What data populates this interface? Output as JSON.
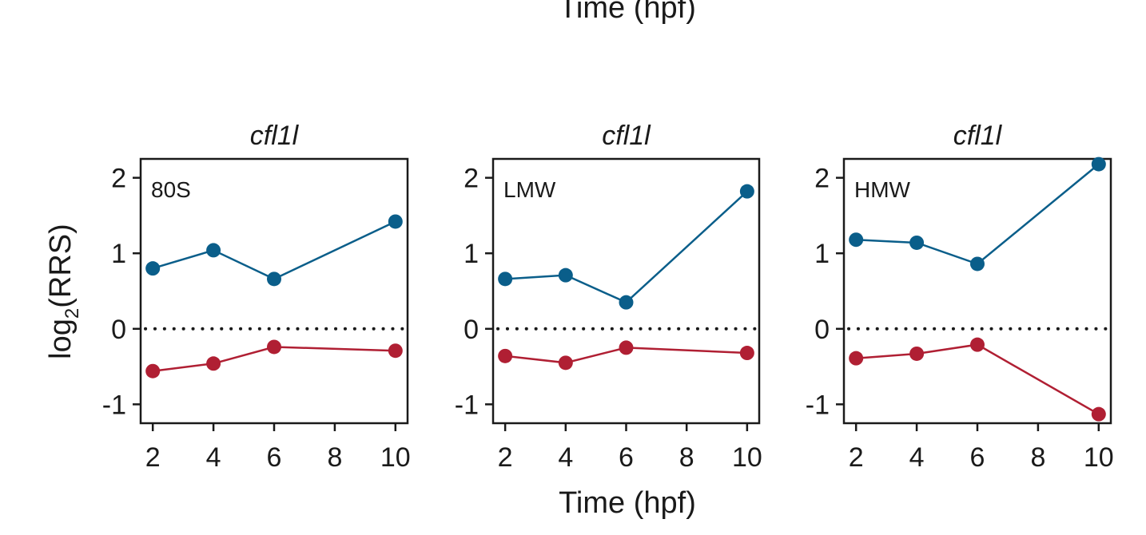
{
  "top_label": "Time (hpf)",
  "chart_data": {
    "type": "line",
    "ylabel_base": "log",
    "ylabel_sub": "2",
    "ylabel_rest": "(RRS)",
    "xlabel": "Time (hpf)",
    "ylim": [
      -1.25,
      2.25
    ],
    "xlim": [
      1.6,
      10.4
    ],
    "yticks": [
      -1,
      0,
      1,
      2
    ],
    "xticks": [
      2,
      4,
      6,
      8,
      10
    ],
    "reference_line": 0,
    "colors": {
      "upper": "#0a5e8a",
      "lower": "#b01f33",
      "axis": "#1a1a1a"
    },
    "panels": [
      {
        "title": "cfl1l",
        "tag": "80S",
        "series": [
          {
            "name": "upper",
            "color": "#0a5e8a",
            "x": [
              2,
              4,
              6,
              10
            ],
            "y": [
              0.8,
              1.04,
              0.66,
              1.42
            ]
          },
          {
            "name": "lower",
            "color": "#b01f33",
            "x": [
              2,
              4,
              6,
              10
            ],
            "y": [
              -0.56,
              -0.46,
              -0.24,
              -0.29
            ]
          }
        ]
      },
      {
        "title": "cfl1l",
        "tag": "LMW",
        "series": [
          {
            "name": "upper",
            "color": "#0a5e8a",
            "x": [
              2,
              4,
              6,
              10
            ],
            "y": [
              0.66,
              0.71,
              0.35,
              1.82
            ]
          },
          {
            "name": "lower",
            "color": "#b01f33",
            "x": [
              2,
              4,
              6,
              10
            ],
            "y": [
              -0.36,
              -0.45,
              -0.25,
              -0.32
            ]
          }
        ]
      },
      {
        "title": "cfl1l",
        "tag": "HMW",
        "series": [
          {
            "name": "upper",
            "color": "#0a5e8a",
            "x": [
              2,
              4,
              6,
              10
            ],
            "y": [
              1.18,
              1.14,
              0.86,
              2.18
            ]
          },
          {
            "name": "lower",
            "color": "#b01f33",
            "x": [
              2,
              4,
              6,
              10
            ],
            "y": [
              -0.39,
              -0.33,
              -0.21,
              -1.13
            ]
          }
        ]
      }
    ]
  }
}
